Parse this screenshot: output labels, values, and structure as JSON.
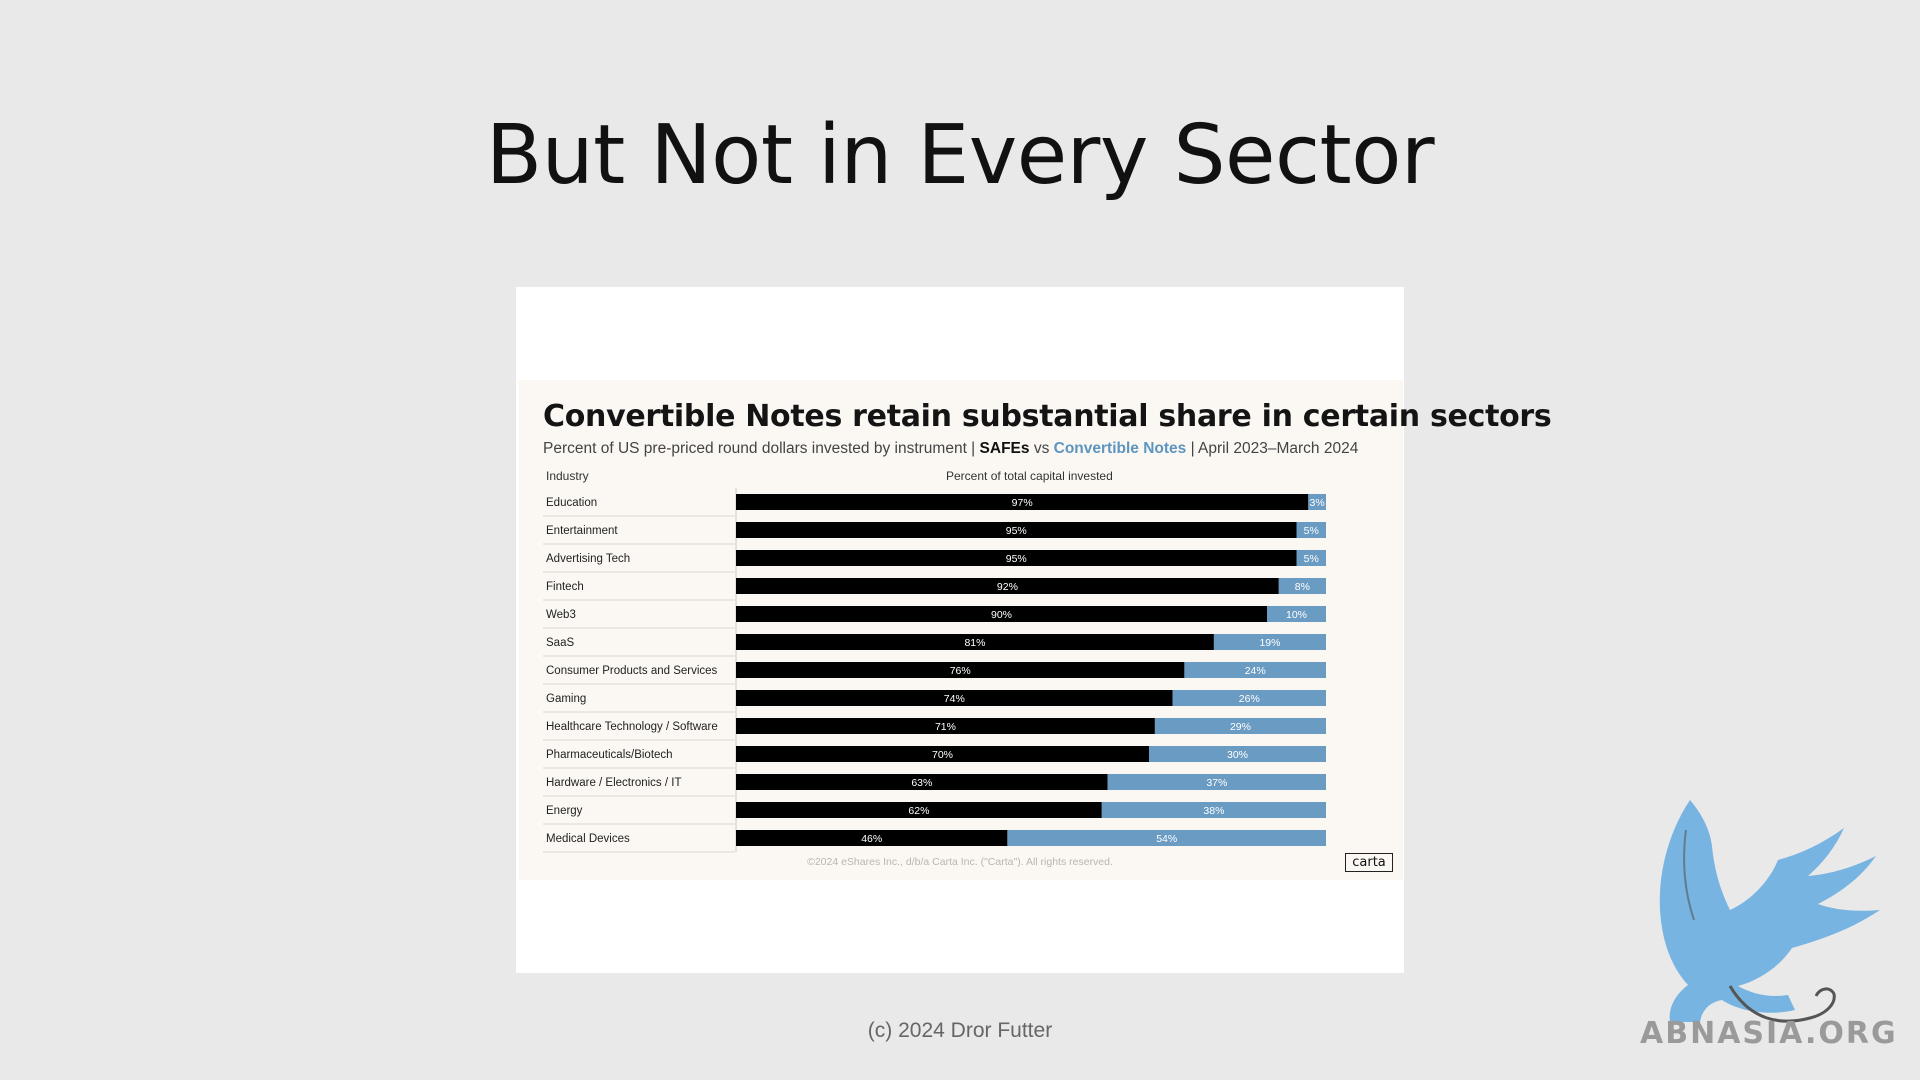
{
  "slide": {
    "title": "But Not in Every Sector",
    "copyright": "(c) 2024 Dror Futter"
  },
  "watermark": {
    "text": "ABNASIA.ORG",
    "icon": "griffin-logo-icon",
    "color": "#6aaee0"
  },
  "colors": {
    "safe": "#000000",
    "convertible_note": "#6a9bc3",
    "background": "#e9e9ea",
    "panel": "#fbf8f3"
  },
  "chart_data": {
    "type": "bar",
    "orientation": "horizontal-stacked-100",
    "title": "Convertible Notes retain substantial share in certain sectors",
    "subtitle_prefix": "Percent of US pre-priced round dollars invested by instrument |",
    "subtitle_safe": "SAFEs",
    "subtitle_vs": "vs",
    "subtitle_cn": "Convertible Notes",
    "subtitle_suffix": "| April 2023–March 2024",
    "col_industry": "Industry",
    "col_percent": "Percent of total capital invested",
    "xlim": [
      0,
      100
    ],
    "categories": [
      "Education",
      "Entertainment",
      "Advertising Tech",
      "Fintech",
      "Web3",
      "SaaS",
      "Consumer Products and Services",
      "Gaming",
      "Healthcare Technology / Software",
      "Pharmaceuticals/Biotech",
      "Hardware / Electronics / IT",
      "Energy",
      "Medical Devices"
    ],
    "series": [
      {
        "values": [
          97,
          95,
          95,
          92,
          90,
          81,
          76,
          74,
          71,
          70,
          63,
          62,
          46
        ]
      },
      {
        "values": [
          3,
          5,
          5,
          8,
          10,
          19,
          24,
          26,
          29,
          30,
          37,
          38,
          54
        ]
      }
    ],
    "footnote": "©2024 eShares Inc., d/b/a Carta Inc. (\"Carta\"). All rights reserved.",
    "source_logo": "carta"
  }
}
